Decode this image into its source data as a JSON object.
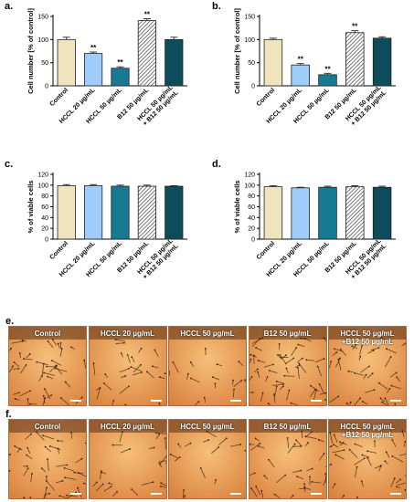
{
  "colors": {
    "control": "#efe4be",
    "hccl20": "#9fcdfb",
    "hccl50": "#167a95",
    "b12": "hatched",
    "combo": "#0d4c5a"
  },
  "chart_data": [
    {
      "panel": "a.",
      "type": "bar",
      "ylabel": "Cell number [% of control]",
      "ylim": [
        0,
        150
      ],
      "yticks": [
        0,
        50,
        100,
        150
      ],
      "categories": [
        "Control",
        "HCCL 20 µg/mL",
        "HCCL 50 µg/mL",
        "B12 50 µg/mL",
        "HCCL 50 µg/mL + B12 50 µg/mL"
      ],
      "values": [
        100,
        70,
        38,
        141,
        100
      ],
      "errors": [
        5,
        3,
        3,
        4,
        5
      ],
      "significance": [
        "",
        "**",
        "**",
        "**",
        ""
      ]
    },
    {
      "panel": "b.",
      "type": "bar",
      "ylabel": "Cell number [% of control]",
      "ylim": [
        0,
        150
      ],
      "yticks": [
        0,
        50,
        100,
        150
      ],
      "categories": [
        "Control",
        "HCCL 20 µg/mL",
        "HCCL 50 µg/mL",
        "B12 50 µg/mL",
        "HCCL 50 µg/mL + B12 50 µg/mL"
      ],
      "values": [
        100,
        45,
        24,
        115,
        103
      ],
      "errors": [
        3,
        3,
        3,
        4,
        3
      ],
      "significance": [
        "",
        "**",
        "**",
        "**",
        ""
      ]
    },
    {
      "panel": "c.",
      "type": "bar",
      "ylabel": "% of viable cells",
      "ylim": [
        0,
        120
      ],
      "yticks": [
        0,
        20,
        40,
        60,
        80,
        100,
        120
      ],
      "categories": [
        "Control",
        "HCCL 20 µg/mL",
        "HCCL 50 µg/mL",
        "B12 50 µg/mL",
        "HCCL 50 µg/mL + B12 50 µg/mL"
      ],
      "values": [
        99,
        99,
        98,
        98,
        98
      ],
      "errors": [
        2,
        2,
        2,
        2,
        1
      ],
      "significance": [
        "",
        "",
        "",
        "",
        ""
      ]
    },
    {
      "panel": "d.",
      "type": "bar",
      "ylabel": "% of viable cells",
      "ylim": [
        0,
        120
      ],
      "yticks": [
        0,
        20,
        40,
        60,
        80,
        100,
        120
      ],
      "categories": [
        "Control",
        "HCCL 20 µg/mL",
        "HCCL 50 µg/mL",
        "B12 50 µg/mL",
        "HCCL 50 µg/mL + B12 50 µg/mL"
      ],
      "values": [
        97,
        95,
        96,
        97,
        96
      ],
      "errors": [
        2,
        1,
        2,
        2,
        2
      ],
      "significance": [
        "",
        "",
        "",
        "",
        ""
      ]
    }
  ],
  "micrographs": [
    {
      "panel": "e.",
      "tiles": [
        "Control",
        "HCCL 20 µg/mL",
        "HCCL 50 µg/mL",
        "B12 50 µg/mL",
        "HCCL 50 µg/mL\n+B12 50 µg/mL"
      ],
      "density": [
        1.0,
        0.65,
        0.4,
        1.3,
        0.95
      ]
    },
    {
      "panel": "f.",
      "tiles": [
        "Control",
        "HCCL 20 µg/mL",
        "HCCL 50 µg/mL",
        "B12 50 µg/mL",
        "HCCL 50 µg/mL\n+B12 50 µg/mL"
      ],
      "density": [
        1.0,
        0.55,
        0.35,
        0.85,
        0.9
      ]
    }
  ]
}
